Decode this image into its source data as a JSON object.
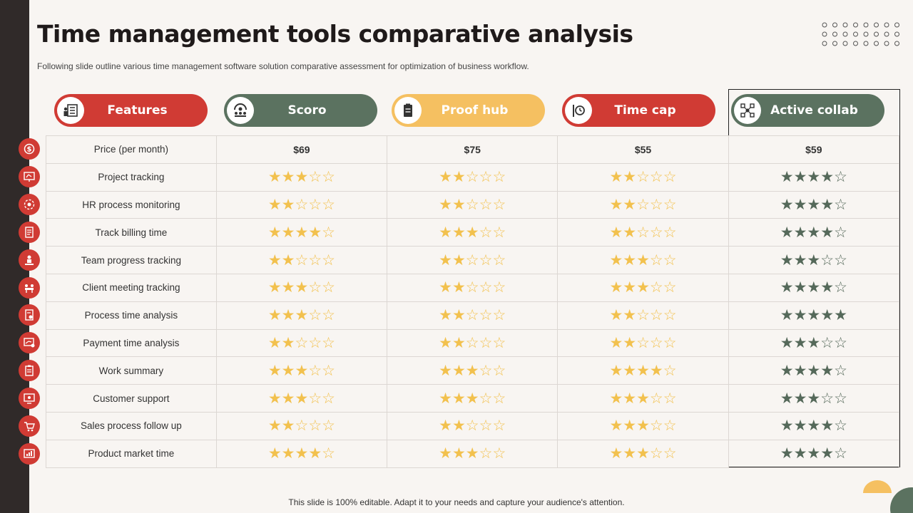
{
  "title": "Time management tools comparative analysis",
  "subtitle": "Following slide outline various time management software solution comparative assessment for optimization of business workflow.",
  "footer": "This slide is 100% editable. Adapt it to your needs and capture your audience's attention.",
  "colors": {
    "red": "#d03b34",
    "green": "#5b7260",
    "yellow": "#f5c061",
    "star_yellow": "#f2c14e",
    "star_green": "#55695a",
    "dark": "#302a29"
  },
  "columns": [
    {
      "label": "Features",
      "color": "#d03b34",
      "icon": "feature-list-icon"
    },
    {
      "label": "Scoro",
      "color": "#5b7260",
      "icon": "team-meeting-icon"
    },
    {
      "label": "Proof hub",
      "color": "#f5c061",
      "icon": "clipboard-icon"
    },
    {
      "label": "Time cap",
      "color": "#d03b34",
      "icon": "clock-sign-icon"
    },
    {
      "label": "Active collab",
      "color": "#5b7260",
      "icon": "network-icon"
    }
  ],
  "price_row": {
    "label": "Price (per month)",
    "values": [
      "$69",
      "$75",
      "$55",
      "$59"
    ]
  },
  "rating_rows": [
    {
      "label": "Project tracking",
      "ratings": [
        3,
        2,
        2,
        4
      ]
    },
    {
      "label": "HR process monitoring",
      "ratings": [
        2,
        2,
        2,
        4
      ]
    },
    {
      "label": "Track billing time",
      "ratings": [
        4,
        3,
        2,
        4
      ]
    },
    {
      "label": "Team progress tracking",
      "ratings": [
        2,
        2,
        3,
        3
      ]
    },
    {
      "label": "Client meeting tracking",
      "ratings": [
        3,
        2,
        3,
        4
      ]
    },
    {
      "label": "Process time analysis",
      "ratings": [
        3,
        2,
        2,
        5
      ]
    },
    {
      "label": "Payment time analysis",
      "ratings": [
        2,
        2,
        2,
        3
      ]
    },
    {
      "label": "Work summary",
      "ratings": [
        3,
        3,
        4,
        4
      ]
    },
    {
      "label": "Customer support",
      "ratings": [
        3,
        3,
        3,
        3
      ]
    },
    {
      "label": "Sales process follow up",
      "ratings": [
        2,
        2,
        3,
        4
      ]
    },
    {
      "label": "Product market time",
      "ratings": [
        4,
        3,
        3,
        4
      ]
    }
  ],
  "row_icons": [
    "dollar-icon",
    "project-board-icon",
    "gear-cycle-icon",
    "billing-document-icon",
    "team-progress-icon",
    "meeting-icon",
    "analysis-document-icon",
    "payment-chart-icon",
    "summary-clipboard-icon",
    "support-monitor-icon",
    "sales-cart-icon",
    "market-chart-icon"
  ],
  "max_rating": 5
}
